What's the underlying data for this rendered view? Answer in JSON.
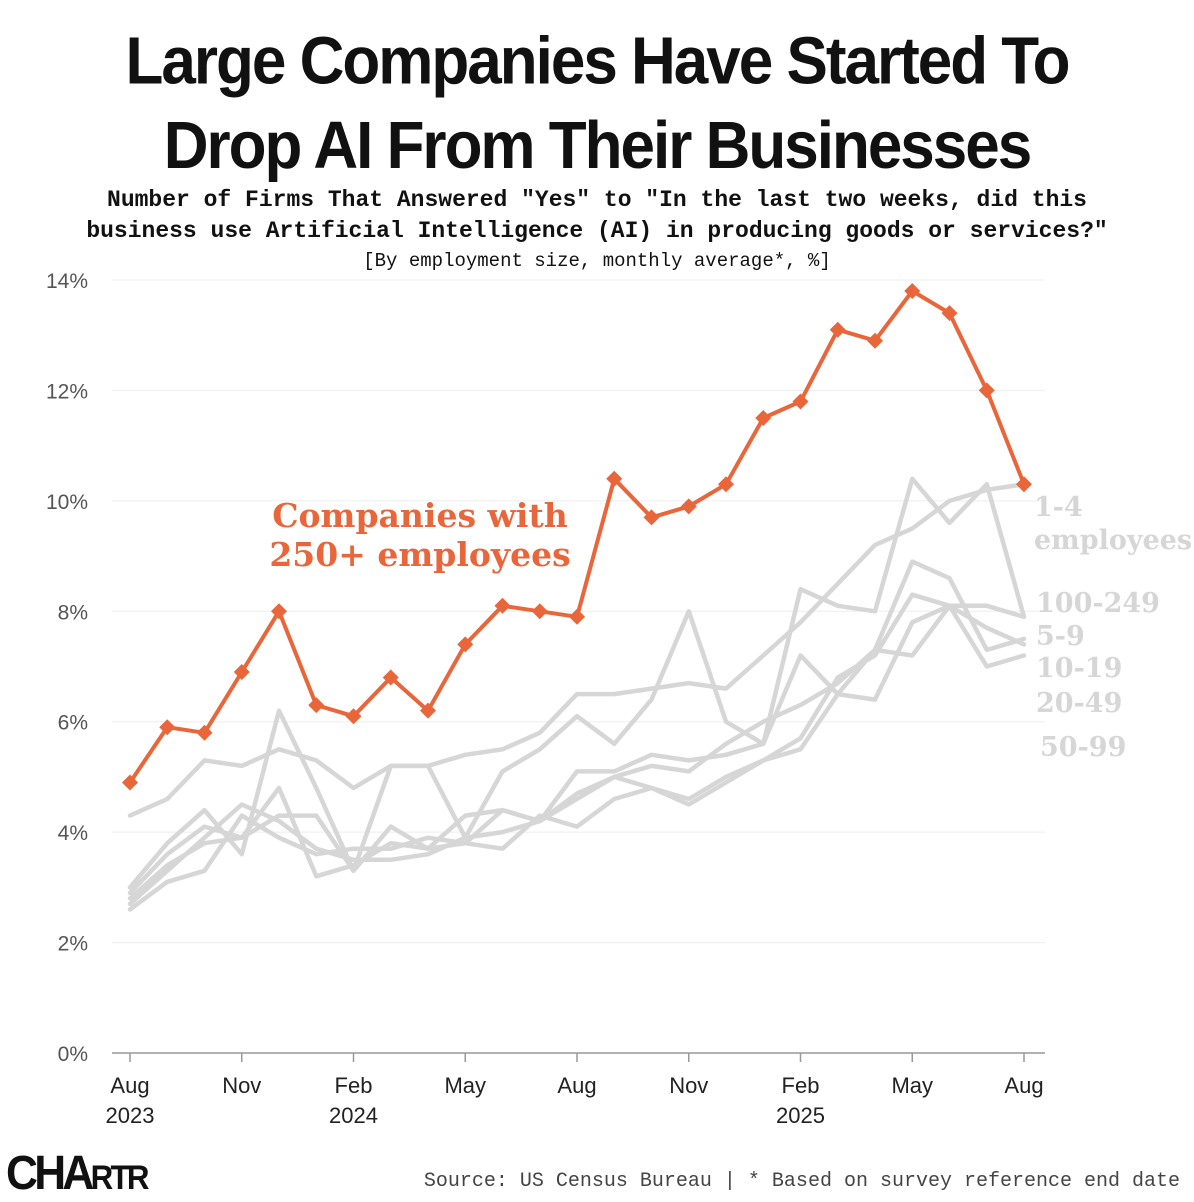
{
  "header": {
    "title_line1": "Large Companies Have Started To",
    "title_line2": "Drop AI From Their Businesses",
    "subtitle_line1": "Number of Firms That Answered \"Yes\" to \"In the last two weeks, did this",
    "subtitle_line2": "business use Artificial Intelligence (AI) in producing goods or services?\"",
    "unit_note": "[By employment size, monthly average*, %]"
  },
  "footer": {
    "logo_main": "CHA",
    "logo_small": "RTR",
    "source": "Source: US Census Bureau | * Based on survey reference end date"
  },
  "colors": {
    "highlight": "#E8663A",
    "muted": "#D6D6D6",
    "axis": "#999999",
    "grid": "#EDEDED"
  },
  "chart_data": {
    "type": "line",
    "ylim": [
      0,
      14
    ],
    "yticks": [
      "0%",
      "2%",
      "4%",
      "6%",
      "8%",
      "10%",
      "12%",
      "14%"
    ],
    "xtick_labels": [
      {
        "label": "Aug",
        "year": "2023",
        "index": 0
      },
      {
        "label": "Nov",
        "year": "",
        "index": 3
      },
      {
        "label": "Feb",
        "year": "2024",
        "index": 6
      },
      {
        "label": "May",
        "year": "",
        "index": 9
      },
      {
        "label": "Aug",
        "year": "",
        "index": 12
      },
      {
        "label": "Nov",
        "year": "",
        "index": 15
      },
      {
        "label": "Feb",
        "year": "2025",
        "index": 18
      },
      {
        "label": "May",
        "year": "",
        "index": 21
      },
      {
        "label": "Aug",
        "year": "",
        "index": 24
      }
    ],
    "x": [
      "Aug 2023",
      "Sep 2023",
      "Oct 2023",
      "Nov 2023",
      "Dec 2023",
      "Jan 2024",
      "Feb 2024",
      "Mar 2024",
      "Apr 2024",
      "May 2024",
      "Jun 2024",
      "Jul 2024",
      "Aug 2024",
      "Sep 2024",
      "Oct 2024",
      "Nov 2024",
      "Dec 2024",
      "Jan 2025",
      "Feb 2025",
      "Mar 2025",
      "Apr 2025",
      "May 2025",
      "Jun 2025",
      "Jul 2025",
      "Aug 2025"
    ],
    "series": [
      {
        "name": "Companies with 250+ employees",
        "highlight": true,
        "marker": "diamond",
        "values": [
          4.9,
          5.9,
          5.8,
          6.9,
          8.0,
          6.3,
          6.1,
          6.8,
          6.2,
          7.4,
          8.1,
          8.0,
          7.9,
          10.4,
          9.7,
          9.9,
          10.3,
          11.5,
          11.8,
          13.1,
          12.9,
          13.8,
          13.4,
          12.0,
          10.3
        ]
      },
      {
        "name": "1-4 employees",
        "highlight": false,
        "values": [
          4.3,
          4.6,
          5.3,
          5.2,
          5.5,
          5.3,
          4.8,
          5.2,
          5.2,
          5.4,
          5.5,
          5.8,
          6.5,
          6.5,
          6.6,
          6.7,
          6.6,
          7.2,
          7.8,
          8.5,
          9.2,
          9.5,
          10.0,
          10.2,
          10.3
        ]
      },
      {
        "name": "100-249",
        "highlight": false,
        "values": [
          3.0,
          3.8,
          4.4,
          3.6,
          6.2,
          4.8,
          3.3,
          5.2,
          5.2,
          3.9,
          5.1,
          5.5,
          6.1,
          5.6,
          6.4,
          8.0,
          6.0,
          5.6,
          8.4,
          8.1,
          8.0,
          10.4,
          9.6,
          10.3,
          7.9
        ]
      },
      {
        "name": "5-9",
        "highlight": false,
        "values": [
          2.9,
          3.6,
          4.1,
          3.9,
          4.3,
          4.3,
          3.3,
          4.1,
          3.7,
          4.3,
          4.4,
          4.2,
          4.7,
          5.0,
          5.2,
          5.1,
          5.6,
          6.0,
          6.3,
          6.7,
          7.3,
          8.9,
          8.6,
          7.3,
          7.5
        ]
      },
      {
        "name": "10-19",
        "highlight": false,
        "values": [
          2.7,
          3.3,
          3.9,
          4.5,
          4.2,
          3.7,
          3.5,
          3.5,
          3.6,
          3.9,
          4.0,
          4.2,
          5.1,
          5.1,
          5.4,
          5.3,
          5.4,
          5.6,
          7.2,
          6.5,
          7.3,
          7.2,
          8.1,
          7.0,
          7.2
        ]
      },
      {
        "name": "20-49",
        "highlight": false,
        "values": [
          2.8,
          3.4,
          3.8,
          3.9,
          4.8,
          3.2,
          3.4,
          3.8,
          3.7,
          3.8,
          4.4,
          4.2,
          4.6,
          5.0,
          4.8,
          4.6,
          5.0,
          5.3,
          5.5,
          6.5,
          6.4,
          7.8,
          8.1,
          7.7,
          7.4
        ]
      },
      {
        "name": "50-99",
        "highlight": false,
        "values": [
          2.6,
          3.1,
          3.3,
          4.3,
          3.9,
          3.6,
          3.7,
          3.7,
          3.9,
          3.8,
          3.7,
          4.3,
          4.1,
          4.6,
          4.8,
          4.5,
          4.9,
          5.3,
          5.7,
          6.8,
          7.2,
          8.3,
          8.1,
          8.1,
          7.9
        ]
      }
    ],
    "annotation_highlight": [
      "Companies with",
      "250+ employees"
    ],
    "end_labels": [
      {
        "series": "1-4 employees",
        "lines": [
          "1-4",
          "employees"
        ]
      },
      {
        "series": "100-249",
        "lines": [
          "100-249"
        ]
      },
      {
        "series": "5-9",
        "lines": [
          "5-9"
        ]
      },
      {
        "series": "10-19",
        "lines": [
          "10-19"
        ]
      },
      {
        "series": "20-49",
        "lines": [
          "20-49"
        ]
      },
      {
        "series": "50-99",
        "lines": [
          "50-99"
        ]
      }
    ],
    "grid": true,
    "legend": "none"
  }
}
